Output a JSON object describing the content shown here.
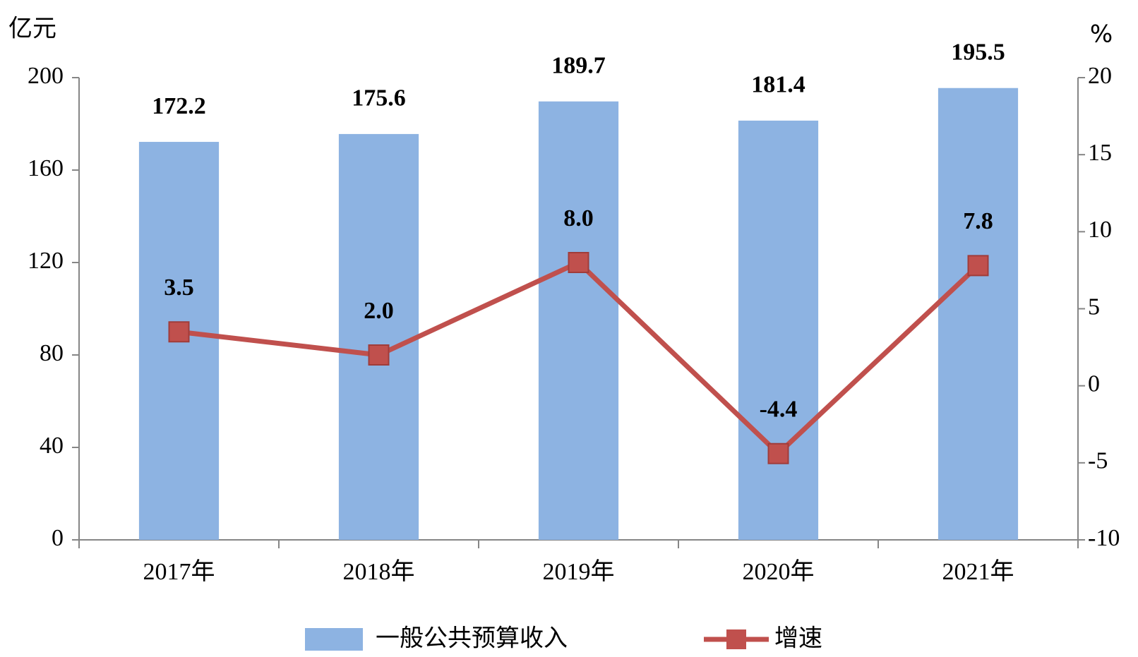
{
  "chart_data": {
    "type": "bar_line",
    "y_label": "亿元",
    "y2_label": "%",
    "categories": [
      "2017年",
      "2018年",
      "2019年",
      "2020年",
      "2021年"
    ],
    "series": [
      {
        "name": "一般公共预算收入",
        "type": "bar",
        "color": "#8db3e2",
        "values": [
          172.2,
          175.6,
          189.7,
          181.4,
          195.5
        ]
      },
      {
        "name": "增速",
        "type": "line",
        "axis": "y2",
        "color": "#c0504d",
        "values": [
          3.5,
          2.0,
          8.0,
          -4.4,
          7.8
        ],
        "value_labels": [
          "3.5",
          "2.0",
          "8.0",
          "-4.4",
          "7.8"
        ]
      }
    ],
    "ylim": [
      0,
      200
    ],
    "yticks": [
      0,
      40,
      80,
      120,
      160,
      200
    ],
    "y2lim": [
      -10,
      20
    ],
    "y2ticks": [
      -10,
      -5,
      0,
      5,
      10,
      15,
      20
    ],
    "legend": "bottom"
  }
}
